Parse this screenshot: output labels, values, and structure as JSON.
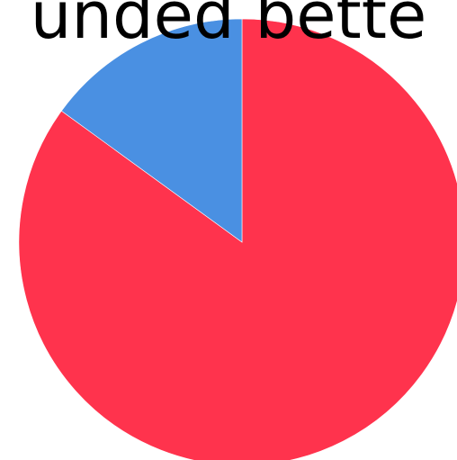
{
  "chart_data": {
    "type": "pie",
    "title": "unded bette",
    "slices": [
      {
        "value": 85,
        "color": "#ff334d"
      },
      {
        "value": 15,
        "color": "#4a90e2"
      }
    ],
    "start_angle_deg": 0,
    "direction": "clockwise"
  }
}
